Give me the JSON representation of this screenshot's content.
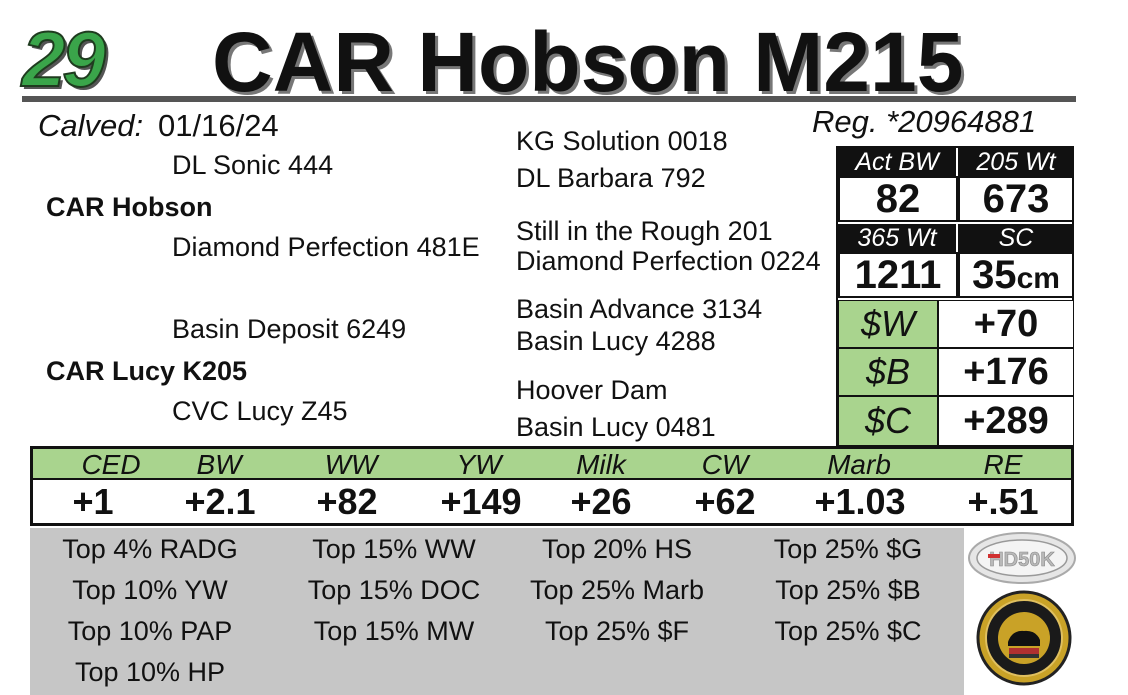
{
  "header": {
    "lot_number": "29",
    "name": "CAR Hobson M215"
  },
  "info": {
    "calved_label": "Calved:",
    "calved_date": "01/16/24",
    "registration": "Reg. *20964881"
  },
  "pedigree": {
    "sire_sire": "DL Sonic 444",
    "sire": "CAR Hobson",
    "sire_dam": "Diamond Perfection 481E",
    "dam_sire": "Basin Deposit 6249",
    "dam": "CAR Lucy K205",
    "dam_dam": "CVC Lucy Z45",
    "ss_sire": "KG Solution 0018",
    "ss_dam": "DL Barbara 792",
    "sd_sire": "Still in the Rough 201",
    "sd_dam": "Diamond Perfection 0224",
    "ds_sire": "Basin Advance 3134",
    "ds_dam": "Basin Lucy 4288",
    "dd_sire": "Hoover Dam",
    "dd_dam": "Basin Lucy 0481"
  },
  "weights": {
    "act_bw_label": "Act BW",
    "act_bw": "82",
    "w205_label": "205 Wt",
    "w205": "673",
    "w365_label": "365 Wt",
    "w365": "1211",
    "sc_label": "SC",
    "sc": "35",
    "sc_unit": "cm"
  },
  "indexes": [
    {
      "label": "$W",
      "value": "+70"
    },
    {
      "label": "$B",
      "value": "+176"
    },
    {
      "label": "$C",
      "value": "+289"
    }
  ],
  "epds": [
    {
      "label": "CED",
      "value": "+1"
    },
    {
      "label": "BW",
      "value": "+2.1"
    },
    {
      "label": "WW",
      "value": "+82"
    },
    {
      "label": "YW",
      "value": "+149"
    },
    {
      "label": "Milk",
      "value": "+26"
    },
    {
      "label": "CW",
      "value": "+62"
    },
    {
      "label": "Marb",
      "value": "+1.03"
    },
    {
      "label": "RE",
      "value": "+.51"
    }
  ],
  "percentiles": [
    [
      "Top 4% RADG",
      "Top 10% YW",
      "Top 10% PAP",
      "Top 10% HP"
    ],
    [
      "Top 15% WW",
      "Top 15% DOC",
      "Top 15% MW"
    ],
    [
      "Top 20% HS",
      "Top 25% Marb",
      "Top 25% $F"
    ],
    [
      "Top 25% $G",
      "Top 25% $B",
      "Top 25% $C"
    ]
  ],
  "logos": {
    "hd50k": "HD50K"
  },
  "colors": {
    "accent_green": "#a9d48e",
    "lot_green": "#3aa54a",
    "gray_panel": "#c6c6c6"
  }
}
